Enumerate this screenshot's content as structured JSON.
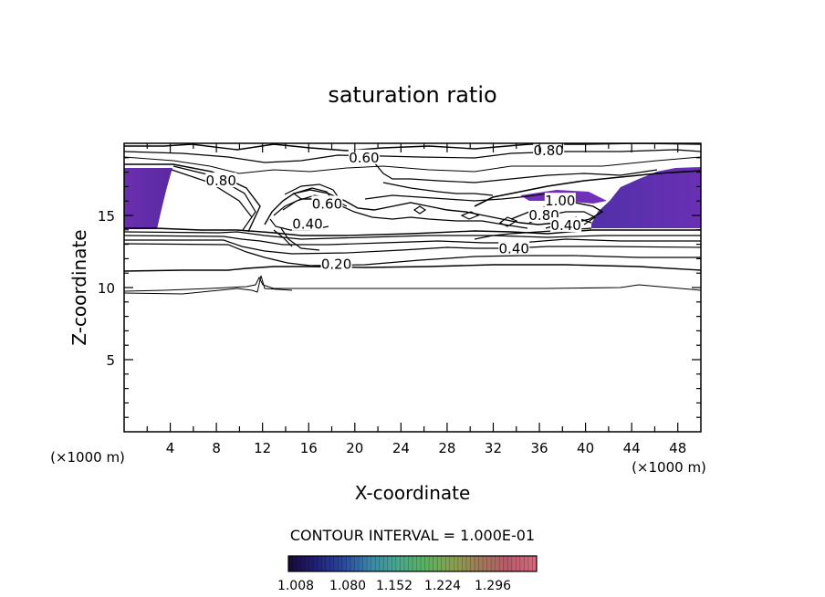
{
  "chart_data": {
    "type": "contour",
    "title": "saturation ratio",
    "xlabel": "X-coordinate",
    "ylabel": "Z-coordinate",
    "x_unit_label": "(×1000 m)",
    "y_unit_label": "(×1000 m)",
    "xlim": [
      0,
      50
    ],
    "ylim": [
      0,
      20
    ],
    "x_ticks": [
      4,
      8,
      12,
      16,
      20,
      24,
      28,
      32,
      36,
      40,
      44,
      48
    ],
    "y_ticks": [
      5,
      10,
      15
    ],
    "contour_interval_text": "CONTOUR INTERVAL = 1.000E-01",
    "contour_labels": [
      {
        "text": "0.60",
        "x": 20.8,
        "z": 19.0
      },
      {
        "text": "0.80",
        "x": 36.8,
        "z": 19.5
      },
      {
        "text": "0.80",
        "x": 8.4,
        "z": 17.4
      },
      {
        "text": "0.60",
        "x": 17.6,
        "z": 15.8
      },
      {
        "text": "0.40",
        "x": 15.9,
        "z": 14.4
      },
      {
        "text": "1.00",
        "x": 37.8,
        "z": 16.0
      },
      {
        "text": "0.80",
        "x": 36.4,
        "z": 15.0
      },
      {
        "text": "0.40",
        "x": 38.3,
        "z": 14.3
      },
      {
        "text": "0.40",
        "x": 33.8,
        "z": 12.7
      },
      {
        "text": "0.20",
        "x": 18.4,
        "z": 11.6
      }
    ],
    "filled_regions": [
      {
        "name": "supersaturated-left",
        "x_range": [
          0,
          4.2
        ],
        "z_range": [
          14.1,
          18.2
        ]
      },
      {
        "name": "supersaturated-right",
        "x_range": [
          40.5,
          50
        ],
        "z_range": [
          14.1,
          18.4
        ]
      }
    ],
    "colorbar": {
      "colors": [
        "#1a0a3c",
        "#22227a",
        "#2c4a9e",
        "#3a8aa8",
        "#4aa888",
        "#5ab060",
        "#8aa050",
        "#a07858",
        "#b85a6a",
        "#d06a7a"
      ],
      "labels": [
        "1.008",
        "1.080",
        "1.152",
        "1.224",
        "1.296"
      ]
    }
  }
}
